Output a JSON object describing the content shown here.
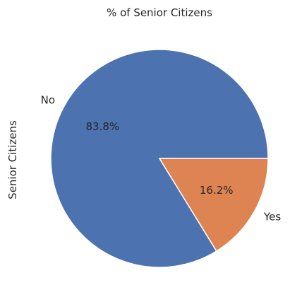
{
  "chart_data": {
    "type": "pie",
    "title": "% of Senior Citizens",
    "ylabel": "Senior Citizens",
    "legend": "none",
    "slices": [
      {
        "label": "No",
        "value": 83.8,
        "pct_label": "83.8%",
        "color": "#4c72b0"
      },
      {
        "label": "Yes",
        "value": 16.2,
        "pct_label": "16.2%",
        "color": "#dd8452"
      }
    ]
  }
}
